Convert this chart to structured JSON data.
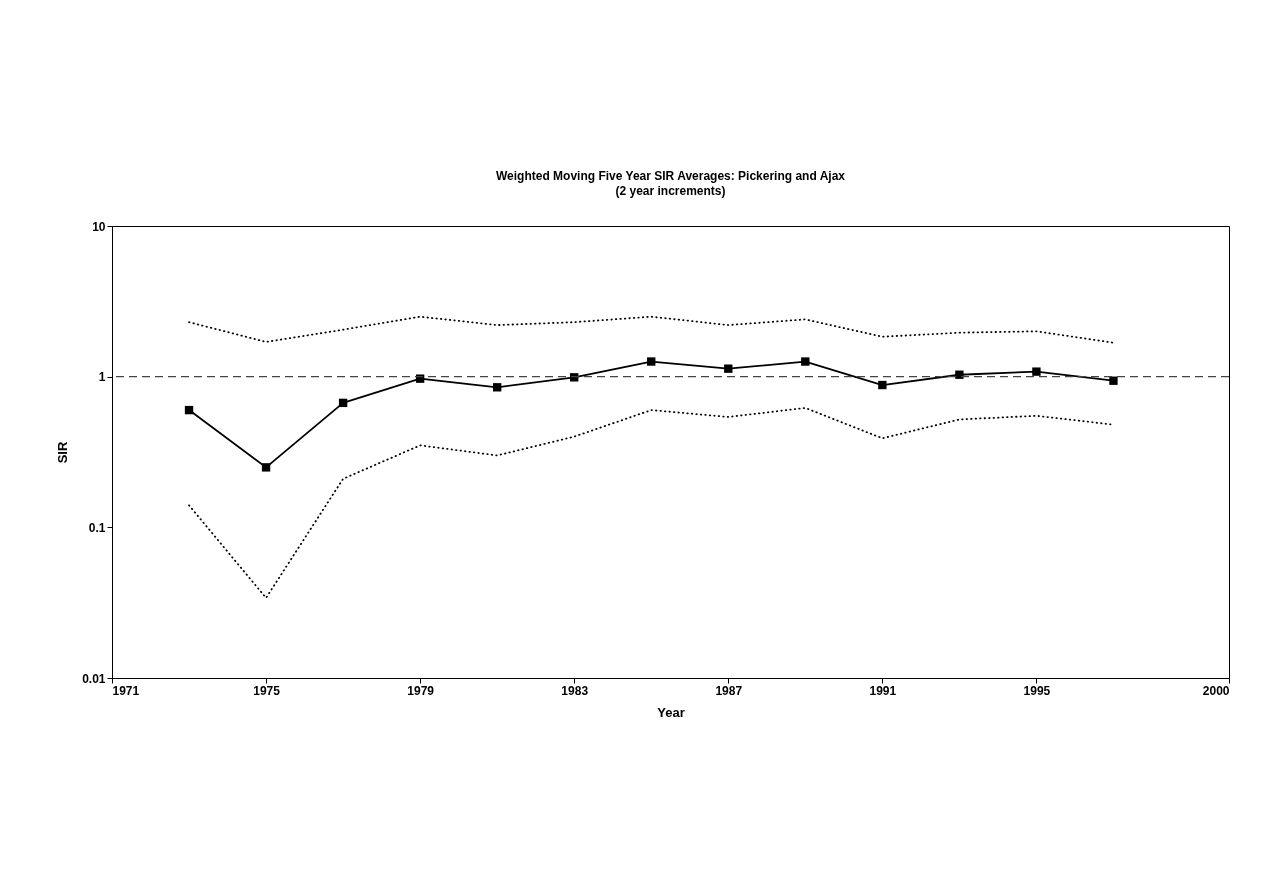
{
  "chart_data": {
    "type": "line",
    "title": "Weighted Moving Five Year SIR Averages:  Pickering and Ajax",
    "subtitle": "(2 year increments)",
    "xlabel": "Year",
    "ylabel": "SIR",
    "log": "y",
    "grid": false,
    "x": [
      1973,
      1975,
      1977,
      1979,
      1981,
      1983,
      1985,
      1987,
      1989,
      1991,
      1993,
      1995,
      1997
    ],
    "xlim": [
      1971,
      2000
    ],
    "xticks": [
      1971,
      1975,
      1979,
      1983,
      1987,
      1991,
      1995,
      2000
    ],
    "ylim": [
      0.01,
      10
    ],
    "yticks": [
      0.01,
      0.1,
      1,
      10
    ],
    "series": [
      {
        "color": "#000000",
        "marker": "square",
        "line_style": "solid",
        "values": [
          0.6,
          0.25,
          0.67,
          0.97,
          0.85,
          0.99,
          1.26,
          1.13,
          1.26,
          0.88,
          1.03,
          1.08,
          0.94
        ]
      },
      {
        "color": "#000000",
        "marker": "none",
        "line_style": "dotted",
        "values": [
          2.3,
          1.7,
          2.05,
          2.5,
          2.2,
          2.3,
          2.5,
          2.2,
          2.4,
          1.84,
          1.96,
          2.0,
          1.68
        ]
      },
      {
        "color": "#000000",
        "marker": "none",
        "line_style": "dotted",
        "values": [
          0.14,
          0.034,
          0.21,
          0.35,
          0.3,
          0.4,
          0.6,
          0.54,
          0.62,
          0.39,
          0.52,
          0.55,
          0.48
        ]
      }
    ],
    "ref_lines": [
      {
        "axis": "y",
        "value": 1,
        "color": "#444444",
        "line_style": "dashed"
      }
    ]
  }
}
